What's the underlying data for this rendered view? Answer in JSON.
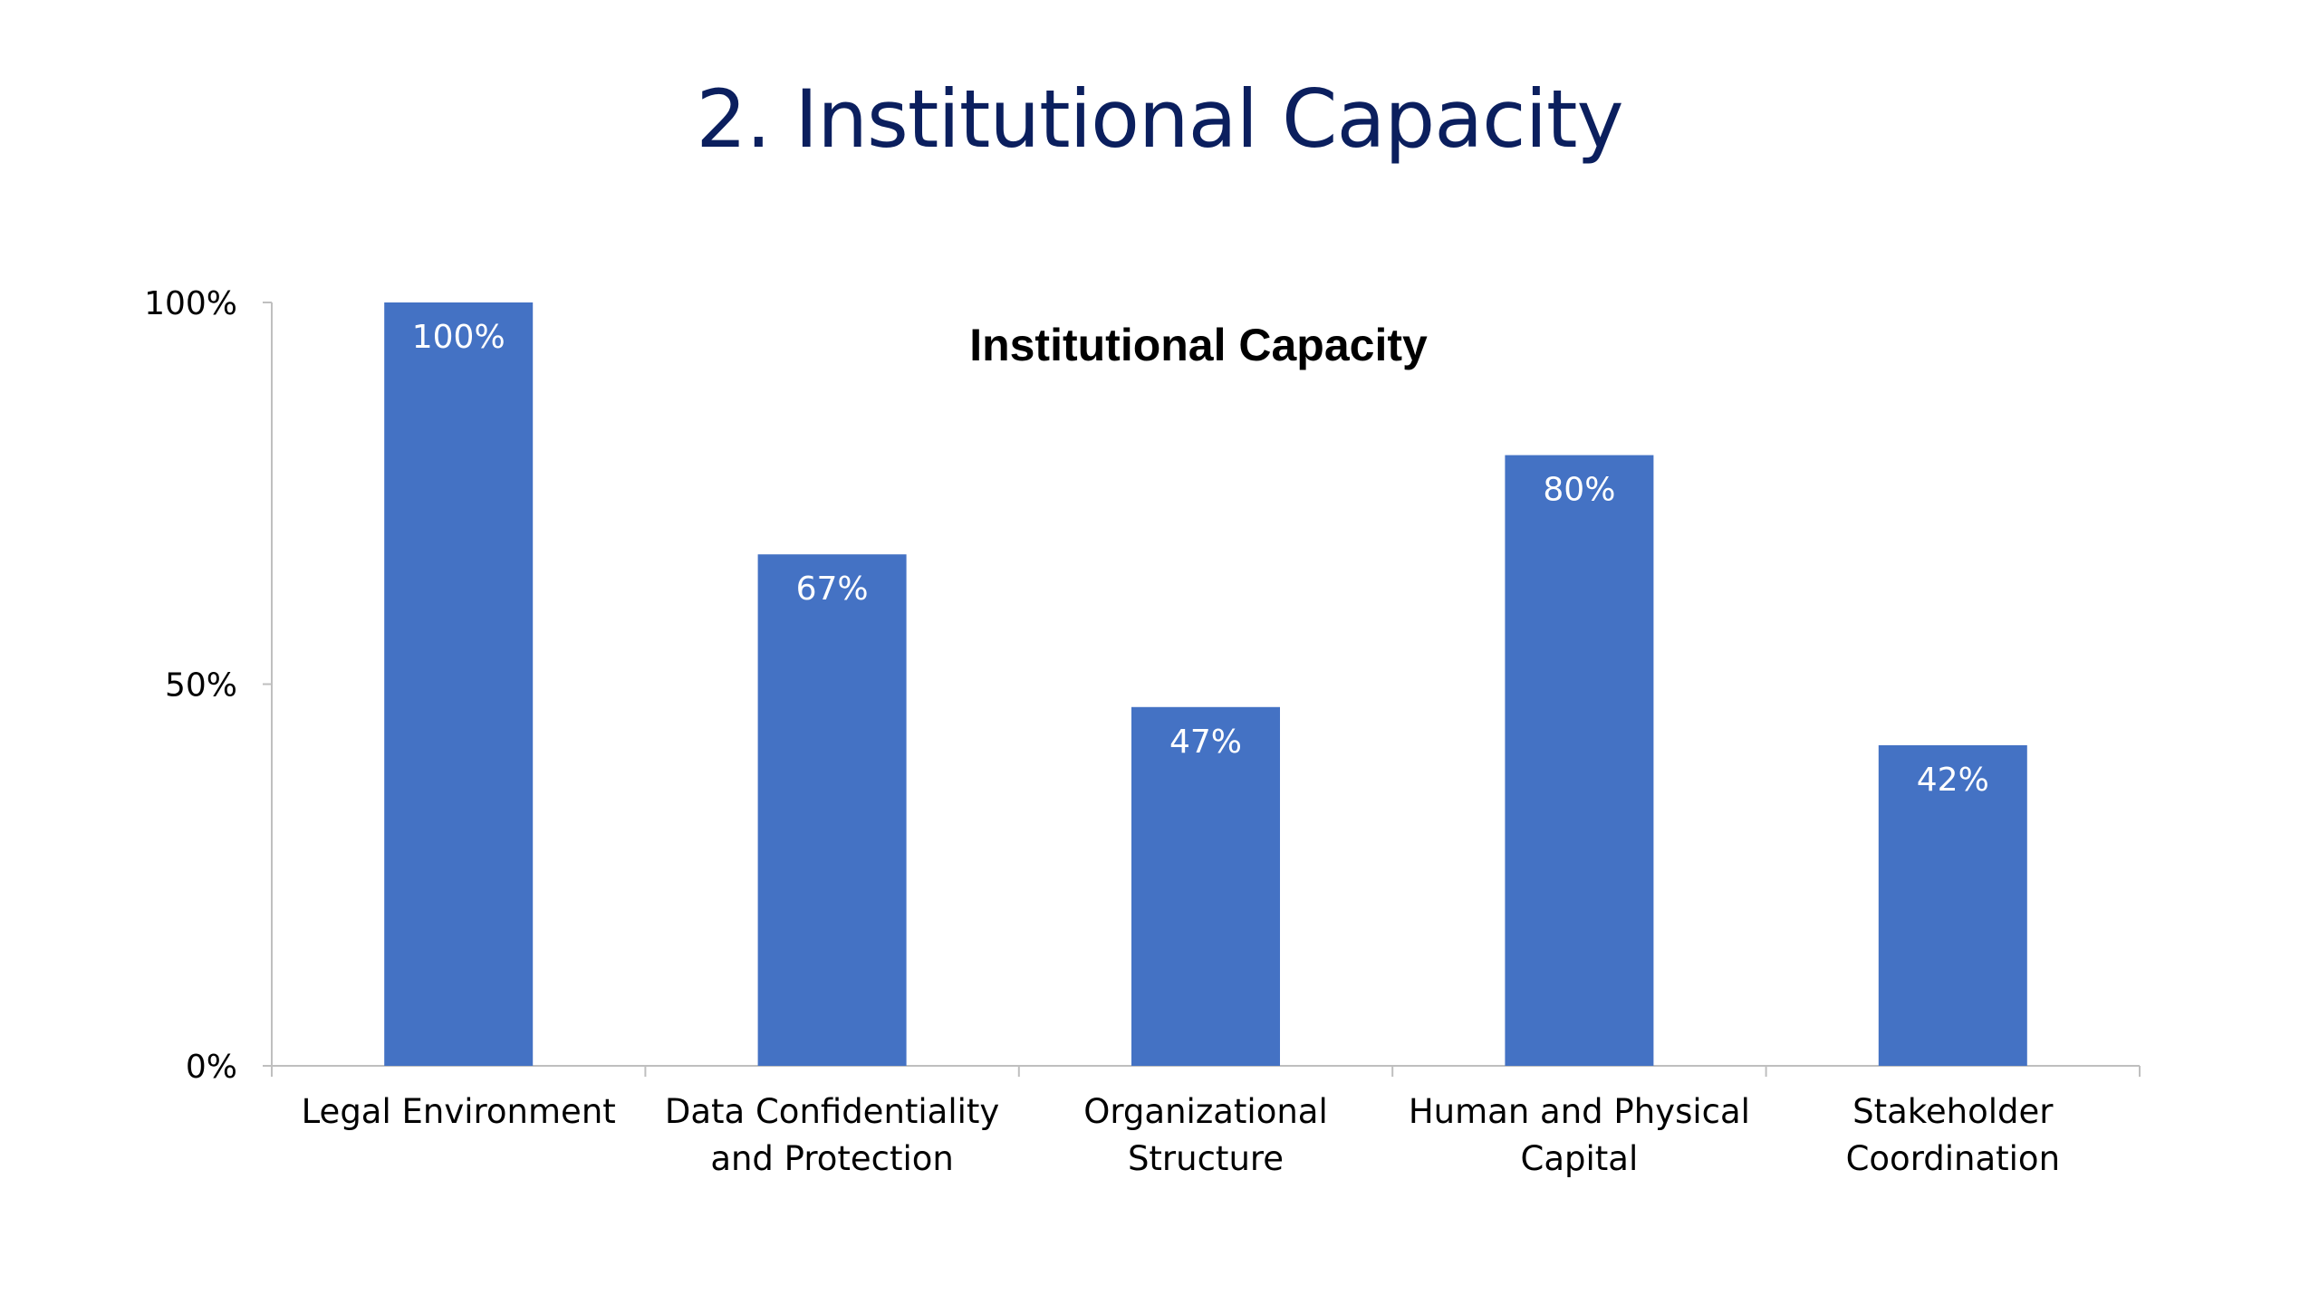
{
  "slide": {
    "title": "2. Institutional Capacity"
  },
  "chart_data": {
    "type": "bar",
    "title": "Institutional Capacity",
    "categories": [
      [
        "Legal Environment"
      ],
      [
        "Data Confidentiality",
        "and Protection"
      ],
      [
        "Organizational",
        "Structure"
      ],
      [
        "Human and Physical",
        "Capital"
      ],
      [
        "Stakeholder",
        "Coordination"
      ]
    ],
    "values": [
      100,
      67,
      47,
      80,
      42
    ],
    "data_labels": [
      "100%",
      "67%",
      "47%",
      "80%",
      "42%"
    ],
    "ylim": [
      0,
      100
    ],
    "yticks": [
      0,
      50,
      100
    ],
    "ytick_labels": [
      "0%",
      "50%",
      "100%"
    ],
    "xlabel": "",
    "ylabel": "",
    "grid": false,
    "legend": "none",
    "bar_color": "#4472c4",
    "label_color": "#ffffff",
    "title_color": "#000000",
    "axis_color": "#bfbfbf",
    "text_color": "#000000"
  }
}
